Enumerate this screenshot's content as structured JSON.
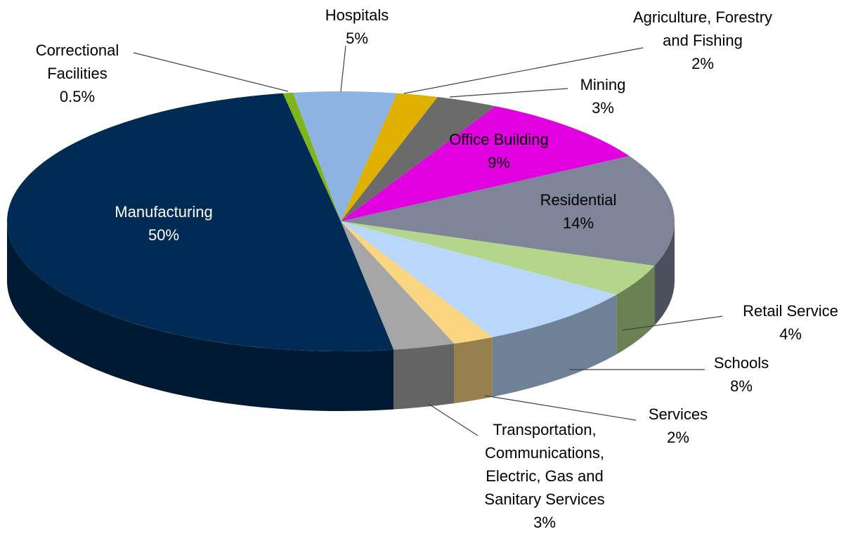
{
  "chart_data": {
    "type": "pie3d",
    "categories": [
      "Correctional Facilities",
      "Hospitals",
      "Agriculture, Forestry and Fishing",
      "Mining",
      "Office Building",
      "Residential",
      "Retail Service",
      "Schools",
      "Services",
      "Transportation, Communications, Electric, Gas and Sanitary Services",
      "Manufacturing"
    ],
    "values": [
      0.5,
      5,
      2,
      3,
      9,
      14,
      4,
      8,
      2,
      3,
      50
    ],
    "value_labels": [
      "0.5%",
      "5%",
      "2%",
      "3%",
      "9%",
      "14%",
      "4%",
      "8%",
      "2%",
      "3%",
      "50%"
    ],
    "colors": [
      "#7fb51a",
      "#8db3e2",
      "#e0b000",
      "#6b6b6b",
      "#e000e0",
      "#7f8599",
      "#b3d68a",
      "#b8d7fa",
      "#fad680",
      "#a6a6a6",
      "#002b55"
    ]
  }
}
